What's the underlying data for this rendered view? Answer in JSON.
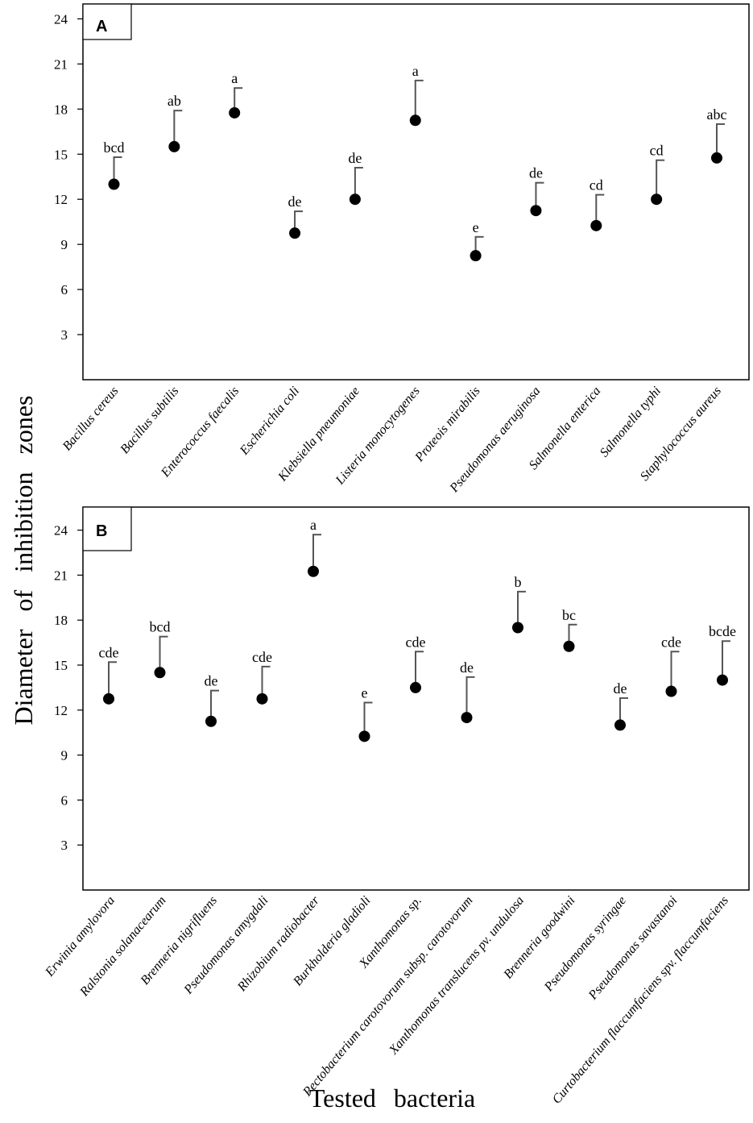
{
  "chart_data": [
    {
      "type": "scatter",
      "panel": "A",
      "ylim": [
        0,
        24
      ],
      "yticks": [
        3,
        6,
        9,
        12,
        15,
        18,
        21,
        24
      ],
      "categories": [
        "Bacillus cereus",
        "Bacillus subtilis",
        "Enterococcus faecalis",
        "Escherichia coli",
        "Klebsiella pneumoniae",
        "Listeria monocytogenes",
        "Proteois mirabilis",
        "Pseudomonas aeruginosa",
        "Salmonella enterica",
        "Salmonella typhi",
        "Staphylococcus aureus"
      ],
      "values": [
        13.0,
        15.5,
        17.75,
        9.75,
        12.0,
        17.25,
        8.25,
        11.25,
        10.25,
        12.0,
        14.75
      ],
      "error_upper": [
        14.8,
        17.9,
        19.4,
        11.2,
        14.1,
        19.9,
        9.5,
        13.1,
        12.3,
        14.6,
        17.0
      ],
      "significance": [
        "bcd",
        "ab",
        "a",
        "de",
        "de",
        "a",
        "e",
        "de",
        "cd",
        "cd",
        "abc"
      ]
    },
    {
      "type": "scatter",
      "panel": "B",
      "ylim": [
        0,
        25.5
      ],
      "yticks": [
        3,
        6,
        9,
        12,
        15,
        18,
        21,
        24
      ],
      "categories": [
        "Erwinia amylovora",
        "Ralstonia solanacearum",
        "Brenneria nigrifluens",
        "Pseudomonas amygdali",
        "Rhizobium radiobacter",
        "Burkholderia gladioli",
        "Xanthomonas sp.",
        "Pectobacterium carotovorum subsp. carotovorum",
        "Xanthomonas translucens pv. undulosa",
        "Brenneria goodwini",
        "Pseudomonas syringae",
        "Pseudomonas savastanoi",
        "Curtobacterium flaccumfaciens spv. flaccumfaciens"
      ],
      "values": [
        12.75,
        14.5,
        11.25,
        12.75,
        21.25,
        10.25,
        13.5,
        11.5,
        17.5,
        16.25,
        11.0,
        13.25,
        14.0
      ],
      "error_upper": [
        15.2,
        16.9,
        13.3,
        14.9,
        23.7,
        12.5,
        15.9,
        14.2,
        19.9,
        17.7,
        12.8,
        15.9,
        16.6
      ],
      "significance": [
        "cde",
        "bcd",
        "de",
        "cde",
        "a",
        "e",
        "cde",
        "de",
        "b",
        "bc",
        "de",
        "cde",
        "bcde"
      ]
    }
  ],
  "ylabel": "Diameter of inhibition zones",
  "xlabel": "Tested bacteria"
}
